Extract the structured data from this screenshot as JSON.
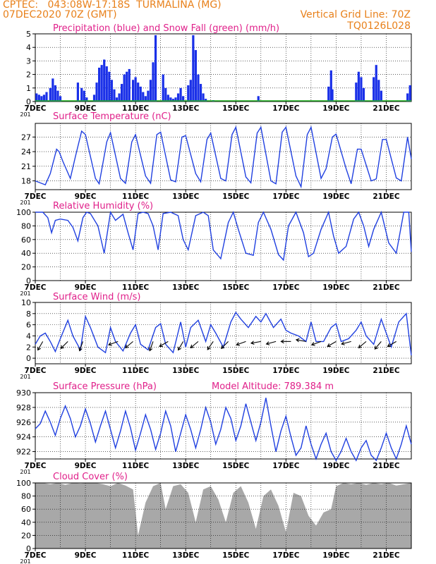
{
  "header": {
    "line1_left": "CPTEC:   043:08W-17:18S  TURMALINA (MG)",
    "line2_left": "07DEC2020 70Z (GMT)",
    "line2_right": "Vertical Grid Line: 70Z",
    "line3_right": "TQ0126L028"
  },
  "colors": {
    "header": "#e8801a",
    "panel_title": "#e0208a",
    "line": "#2040e0",
    "precip_bar": "#1a30e8",
    "snow_bar": "#20b020",
    "cloud_fill": "#a8a8a8",
    "arrow": "#000000"
  },
  "x_axis": {
    "date_labels": [
      "7DEC",
      "9DEC",
      "11DEC",
      "13DEC",
      "15DEC",
      "17DEC",
      "19DEC",
      "21DEC"
    ],
    "date_positions_days": [
      0,
      2,
      4,
      6,
      8,
      10,
      12,
      14
    ],
    "x_range_days": [
      0,
      15
    ],
    "corner_label": "201"
  },
  "chart_data": [
    {
      "type": "bar",
      "title": "Precipitation (blue) and Snow Fall (green) (mm/h)",
      "ylim": [
        0,
        5
      ],
      "yticks": [
        "0",
        "1",
        "2",
        "3",
        "4",
        "5"
      ],
      "series": [
        {
          "name": "Precipitation",
          "color": "#1a30e8",
          "x": [
            0.05,
            0.15,
            0.25,
            0.35,
            0.45,
            0.6,
            0.7,
            0.8,
            0.9,
            1.0,
            1.7,
            1.85,
            1.95,
            2.05,
            2.35,
            2.45,
            2.55,
            2.65,
            2.75,
            2.85,
            2.95,
            3.05,
            3.15,
            3.25,
            3.35,
            3.45,
            3.55,
            3.65,
            3.75,
            3.9,
            4.0,
            4.1,
            4.2,
            4.3,
            4.4,
            4.5,
            4.6,
            4.7,
            4.8,
            5.1,
            5.2,
            5.3,
            5.4,
            5.5,
            5.6,
            5.7,
            5.8,
            5.9,
            6.1,
            6.2,
            6.3,
            6.4,
            6.5,
            6.6,
            6.7,
            6.8,
            7.1,
            8.9,
            11.7,
            11.8,
            11.85,
            12.8,
            12.9,
            13.0,
            13.1,
            13.5,
            13.6,
            13.7,
            13.8,
            14.85,
            14.95
          ],
          "values": [
            0.6,
            0.5,
            0.4,
            0.5,
            0.7,
            1.0,
            1.7,
            1.2,
            0.8,
            0.4,
            1.4,
            1.0,
            0.8,
            0.3,
            0.5,
            1.4,
            2.5,
            2.7,
            3.1,
            2.6,
            2.2,
            1.6,
            0.9,
            0.3,
            0.6,
            1.3,
            2.0,
            2.2,
            2.4,
            1.6,
            1.8,
            1.4,
            1.1,
            0.7,
            0.4,
            0.8,
            1.6,
            2.9,
            4.9,
            2.0,
            1.0,
            0.5,
            0.3,
            0.2,
            0.3,
            0.6,
            1.0,
            0.4,
            1.2,
            1.6,
            4.9,
            3.8,
            2.0,
            1.3,
            0.6,
            0.2,
            0.1,
            0.4,
            1.1,
            2.3,
            0.9,
            1.4,
            2.2,
            1.8,
            1.0,
            1.8,
            2.7,
            1.6,
            0.8,
            0.6,
            1.2
          ]
        },
        {
          "name": "Snow Fall",
          "color": "#20b020",
          "values": [
            0
          ]
        }
      ]
    },
    {
      "type": "line",
      "title": "Surface Temperature (nC)",
      "ylim": [
        16.2,
        29.8
      ],
      "yticks": [
        "18",
        "21",
        "24",
        "27"
      ],
      "x": [
        0,
        0.4,
        0.6,
        0.85,
        0.95,
        1.1,
        1.4,
        1.6,
        1.85,
        2.0,
        2.4,
        2.55,
        2.85,
        3.0,
        3.4,
        3.6,
        3.85,
        4.0,
        4.4,
        4.6,
        4.85,
        5.0,
        5.4,
        5.6,
        5.85,
        6.0,
        6.4,
        6.6,
        6.85,
        7.0,
        7.4,
        7.6,
        7.85,
        8.0,
        8.4,
        8.6,
        8.85,
        9.0,
        9.4,
        9.6,
        9.85,
        10.0,
        10.4,
        10.6,
        10.85,
        11.0,
        11.4,
        11.6,
        11.85,
        12.0,
        12.4,
        12.6,
        12.85,
        13.0,
        13.4,
        13.6,
        13.85,
        14.0,
        14.4,
        14.6,
        14.85,
        15.0
      ],
      "values": [
        18.0,
        17.2,
        19.5,
        24.5,
        24.0,
        22.0,
        18.5,
        23.0,
        28.2,
        27.5,
        18.5,
        17.4,
        26.0,
        27.9,
        18.5,
        17.5,
        26.0,
        27.5,
        19.0,
        17.5,
        27.5,
        28.0,
        18.2,
        17.8,
        27.0,
        27.3,
        19.5,
        17.8,
        26.5,
        27.8,
        18.5,
        18.0,
        27.5,
        29.0,
        18.8,
        17.6,
        27.8,
        29.0,
        18.0,
        17.4,
        28.0,
        29.0,
        19.0,
        16.8,
        27.5,
        29.0,
        18.5,
        20.5,
        27.0,
        27.6,
        20.5,
        17.4,
        24.5,
        24.5,
        18.0,
        18.4,
        26.5,
        26.5,
        18.6,
        18.0,
        27.0,
        22.5
      ]
    },
    {
      "type": "line",
      "title": "Relative Humidity (%)",
      "ylim": [
        0,
        100
      ],
      "yticks": [
        "0",
        "20",
        "40",
        "60",
        "80",
        "100"
      ],
      "x": [
        0,
        0.3,
        0.5,
        0.65,
        0.8,
        1.0,
        1.3,
        1.5,
        1.7,
        1.9,
        2.05,
        2.2,
        2.5,
        2.75,
        3.0,
        3.2,
        3.5,
        3.7,
        3.9,
        4.1,
        4.3,
        4.5,
        4.7,
        4.9,
        5.1,
        5.4,
        5.7,
        5.9,
        6.1,
        6.4,
        6.7,
        6.9,
        7.1,
        7.4,
        7.7,
        7.9,
        8.1,
        8.4,
        8.7,
        8.9,
        9.1,
        9.4,
        9.7,
        9.9,
        10.1,
        10.4,
        10.7,
        10.9,
        11.1,
        11.4,
        11.7,
        11.9,
        12.1,
        12.4,
        12.7,
        12.9,
        13.1,
        13.3,
        13.5,
        13.8,
        14.1,
        14.4,
        14.7,
        14.9,
        15.0
      ],
      "values": [
        100,
        100,
        92,
        70,
        88,
        90,
        88,
        78,
        58,
        92,
        100,
        98,
        80,
        40,
        100,
        88,
        97,
        70,
        45,
        98,
        100,
        98,
        80,
        45,
        98,
        100,
        95,
        60,
        45,
        95,
        100,
        95,
        45,
        32,
        85,
        100,
        75,
        40,
        37,
        85,
        100,
        75,
        38,
        30,
        80,
        100,
        70,
        35,
        40,
        75,
        100,
        65,
        40,
        50,
        90,
        100,
        80,
        50,
        75,
        100,
        55,
        40,
        100,
        100,
        42
      ]
    },
    {
      "type": "line",
      "title": "Surface Wind (m/s)",
      "ylim": [
        -1,
        10
      ],
      "yticks": [
        "0",
        "2",
        "4",
        "6",
        "8",
        "10"
      ],
      "x": [
        0,
        0.2,
        0.4,
        0.6,
        0.8,
        1.0,
        1.3,
        1.5,
        1.8,
        2.0,
        2.2,
        2.5,
        2.8,
        3.0,
        3.2,
        3.5,
        3.8,
        4.0,
        4.2,
        4.5,
        4.8,
        5.0,
        5.2,
        5.5,
        5.8,
        6.0,
        6.2,
        6.5,
        6.8,
        7.0,
        7.2,
        7.5,
        7.8,
        8.0,
        8.2,
        8.5,
        8.8,
        9.0,
        9.2,
        9.5,
        9.8,
        10.0,
        10.2,
        10.5,
        10.8,
        11.0,
        11.2,
        11.5,
        11.8,
        12.0,
        12.2,
        12.5,
        12.8,
        13.0,
        13.2,
        13.5,
        13.8,
        14.0,
        14.2,
        14.5,
        14.8,
        15.0
      ],
      "values": [
        2.5,
        4.0,
        4.5,
        3.0,
        1.2,
        3.5,
        6.8,
        4.0,
        1.5,
        7.5,
        5.5,
        2.0,
        1.0,
        5.5,
        3.0,
        1.3,
        4.5,
        6.0,
        2.5,
        1.5,
        5.5,
        6.2,
        2.5,
        1.0,
        6.5,
        2.0,
        5.5,
        6.8,
        3.0,
        6.0,
        4.5,
        2.0,
        6.5,
        8.2,
        7.0,
        5.5,
        7.5,
        6.5,
        8.0,
        5.5,
        7.0,
        5.0,
        4.5,
        4.0,
        3.0,
        6.5,
        3.0,
        3.0,
        5.5,
        6.2,
        3.0,
        3.5,
        5.0,
        6.5,
        4.0,
        2.5,
        7.0,
        4.5,
        2.0,
        6.5,
        8.0,
        0.5
      ]
    },
    {
      "type": "line",
      "title": "Surface Pressure (hPa)",
      "annotation": "Model Altitude: 789.384  m",
      "ylim": [
        921,
        930
      ],
      "yticks": [
        "922",
        "924",
        "926",
        "928",
        "930"
      ],
      "x": [
        0,
        0.2,
        0.4,
        0.6,
        0.8,
        1.0,
        1.2,
        1.4,
        1.6,
        1.8,
        2.0,
        2.2,
        2.4,
        2.6,
        2.8,
        3.0,
        3.2,
        3.4,
        3.6,
        3.8,
        4.0,
        4.2,
        4.4,
        4.6,
        4.8,
        5.0,
        5.2,
        5.4,
        5.6,
        5.8,
        6.0,
        6.2,
        6.4,
        6.6,
        6.8,
        7.0,
        7.2,
        7.4,
        7.6,
        7.8,
        8.0,
        8.2,
        8.4,
        8.6,
        8.8,
        9.0,
        9.2,
        9.4,
        9.6,
        9.8,
        10.0,
        10.2,
        10.4,
        10.6,
        10.8,
        11.0,
        11.2,
        11.4,
        11.6,
        11.8,
        12.0,
        12.2,
        12.4,
        12.6,
        12.8,
        13.0,
        13.2,
        13.4,
        13.6,
        13.8,
        14.0,
        14.2,
        14.4,
        14.6,
        14.8,
        15.0
      ],
      "values": [
        925.1,
        925.8,
        927.5,
        926.0,
        924.2,
        926.5,
        928.2,
        926.5,
        924.0,
        925.5,
        927.8,
        925.8,
        923.3,
        925.5,
        927.5,
        925.0,
        922.5,
        924.8,
        927.5,
        925.2,
        922.2,
        924.5,
        927.0,
        925.0,
        922.3,
        924.5,
        927.5,
        925.5,
        922.0,
        924.5,
        927.0,
        925.0,
        922.5,
        925.0,
        928.0,
        926.0,
        923.0,
        925.0,
        928.0,
        926.5,
        923.5,
        925.5,
        928.5,
        926.0,
        923.5,
        926.0,
        929.3,
        925.5,
        922.0,
        924.8,
        926.8,
        924.0,
        921.5,
        922.5,
        925.5,
        923.0,
        921.0,
        923.0,
        924.5,
        922.0,
        920.8,
        922.0,
        923.8,
        922.0,
        920.8,
        922.5,
        923.5,
        921.5,
        920.8,
        922.5,
        924.5,
        922.5,
        921.0,
        923.0,
        925.5,
        923.0
      ]
    },
    {
      "type": "area",
      "title": "Cloud Cover (%)",
      "ylim": [
        0,
        100
      ],
      "yticks": [
        "0",
        "20",
        "40",
        "60",
        "80",
        "100"
      ],
      "x": [
        0,
        0.3,
        0.6,
        0.9,
        1.2,
        1.5,
        1.8,
        2.1,
        2.4,
        2.7,
        3.0,
        3.3,
        3.6,
        3.9,
        4.1,
        4.4,
        4.7,
        5.0,
        5.2,
        5.5,
        5.8,
        6.1,
        6.4,
        6.7,
        7.0,
        7.3,
        7.6,
        7.9,
        8.2,
        8.5,
        8.8,
        9.1,
        9.4,
        9.7,
        10.0,
        10.3,
        10.6,
        10.9,
        11.2,
        11.5,
        11.8,
        12.0,
        12.3,
        12.6,
        12.9,
        13.2,
        13.5,
        13.8,
        14.1,
        14.4,
        14.7,
        15.0
      ],
      "values": [
        100,
        100,
        98,
        100,
        97,
        100,
        99,
        100,
        100,
        98,
        95,
        100,
        96,
        90,
        20,
        70,
        95,
        100,
        60,
        95,
        98,
        85,
        40,
        90,
        95,
        75,
        40,
        85,
        95,
        70,
        30,
        80,
        90,
        65,
        25,
        85,
        80,
        50,
        35,
        55,
        60,
        95,
        100,
        98,
        100,
        97,
        100,
        98,
        100,
        96,
        98,
        100
      ]
    },
    {
      "type": "line",
      "series": [
        {
          "name": "wind_arrows",
          "x": [
            0.3,
            1.3,
            1.9,
            3.3,
            3.9,
            4.7,
            5.3,
            5.9,
            6.5,
            7.1,
            7.7,
            8.4,
            9.0,
            9.6,
            10.2,
            10.8,
            11.4,
            12.0,
            12.6,
            13.2,
            13.8,
            14.4
          ],
          "values": [
            3.0,
            3.0,
            3.0,
            3.0,
            3.0,
            3.0,
            3.0,
            3.0,
            3.0,
            3.0,
            3.0,
            3.0,
            3.0,
            3.0,
            3.0,
            3.0,
            3.0,
            3.0,
            3.0,
            3.0,
            3.0,
            3.0
          ],
          "dir_deg": [
            210,
            225,
            200,
            250,
            230,
            200,
            240,
            210,
            230,
            215,
            225,
            250,
            260,
            255,
            270,
            280,
            250,
            240,
            255,
            230,
            220,
            240
          ]
        }
      ]
    }
  ]
}
